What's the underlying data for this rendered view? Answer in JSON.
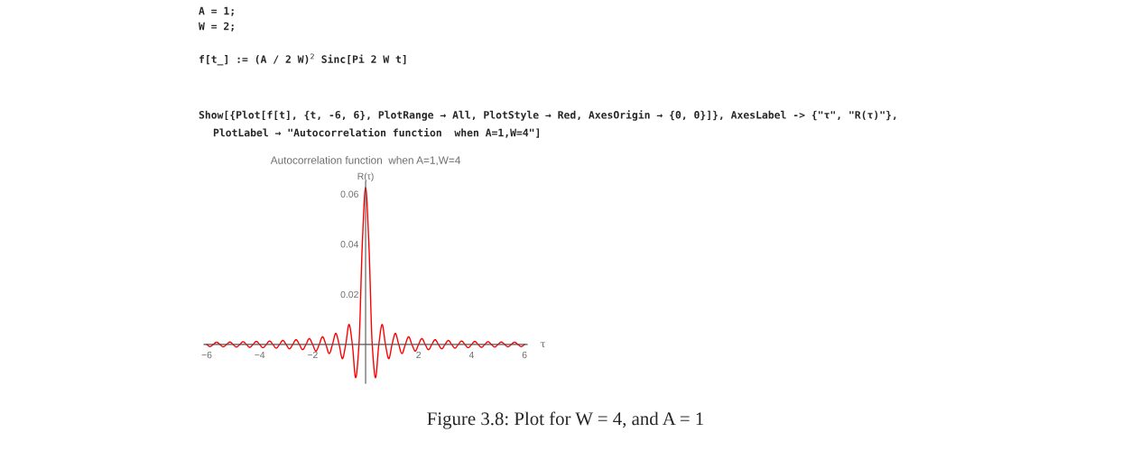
{
  "chart_data": {
    "type": "line",
    "title": "Autocorrelation function  when A=1,W=4",
    "xlabel": "τ",
    "ylabel": "R(τ)",
    "annotations": [
      "A = 1;",
      "W = 2;",
      "f[t_] := (A / 2 W)$^{2}$ Sinc[Pi 2 W t]",
      "Show[{Plot[f[t], {t, -6, 6}, PlotRange → All, PlotStyle → Red, AxesOrigin → {0, 0}]}, AxesLabel -> {\"τ\", \"R(τ)\"},",
      "PlotLabel → \"Autocorrelation function  when A=1,W=4\"]",
      "Figure 3.8: Plot for W = 4, and A = 1"
    ],
    "series": [
      {
        "color": "#ff0000",
        "x": [
          -6,
          -5.875,
          -5.75,
          -5.625,
          -5.5,
          -5.375,
          -5.25,
          -5.125,
          -5,
          -4.875,
          -4.75,
          -4.625,
          -4.5,
          -4.375,
          -4.25,
          -4.125,
          -4,
          -3.875,
          -3.75,
          -3.625,
          -3.5,
          -3.375,
          -3.25,
          -3.125,
          -3,
          -2.875,
          -2.75,
          -2.625,
          -2.5,
          -2.375,
          -2.25,
          -2.125,
          -2,
          -1.875,
          -1.75,
          -1.625,
          -1.5,
          -1.375,
          -1.25,
          -1.125,
          -1,
          -0.875,
          -0.75,
          -0.625,
          -0.5,
          -0.375,
          -0.25,
          -0.125,
          0,
          0.125,
          0.25,
          0.375,
          0.5,
          0.625,
          0.75,
          0.875,
          1,
          1.125,
          1.25,
          1.375,
          1.5,
          1.625,
          1.75,
          1.875,
          2,
          2.125,
          2.25,
          2.375,
          2.5,
          2.625,
          2.75,
          2.875,
          3,
          3.125,
          3.25,
          3.375,
          3.5,
          3.625,
          3.75,
          3.875,
          4,
          4.125,
          4.25,
          4.375,
          4.5,
          4.625,
          4.75,
          4.875,
          5,
          5.125,
          5.25,
          5.375,
          5.5,
          5.625,
          5.75,
          5.875,
          6
        ],
        "values": [
          0,
          -0.00085,
          0,
          0.00088,
          0,
          -0.00093,
          0,
          0.00097,
          0,
          -0.00102,
          0,
          0.00108,
          0,
          -0.00114,
          0,
          0.00121,
          0,
          -0.00128,
          0,
          0.00137,
          0,
          -0.00147,
          0,
          0.00159,
          0,
          -0.00173,
          0,
          0.00189,
          0,
          -0.00209,
          0,
          0.00234,
          0,
          -0.00265,
          0,
          0.00306,
          0,
          -0.00362,
          0,
          0.00442,
          0,
          -0.00568,
          0,
          0.00796,
          0,
          -0.01326,
          0,
          0.0398,
          0.0625,
          0.0398,
          0,
          -0.01326,
          0,
          0.00796,
          0,
          -0.00568,
          0,
          0.00442,
          0,
          -0.00362,
          0,
          0.00306,
          0,
          -0.00265,
          0,
          0.00234,
          0,
          -0.00209,
          0,
          0.00189,
          0,
          -0.00173,
          0,
          0.00159,
          0,
          -0.00147,
          0,
          0.00137,
          0,
          -0.00128,
          0,
          0.00121,
          0,
          -0.00114,
          0,
          0.00108,
          0,
          -0.00102,
          0,
          0.00097,
          0,
          -0.00093,
          0,
          0.00088,
          0,
          -0.00085,
          0
        ]
      }
    ],
    "xlim": [
      -6.1,
      6.1
    ],
    "ylim": [
      -0.0155,
      0.065
    ],
    "xticks": [
      {
        "value": -6,
        "label": "−6"
      },
      {
        "value": -4,
        "label": "−4"
      },
      {
        "value": -2,
        "label": "−2"
      },
      2,
      4,
      6
    ],
    "yticks": [
      0.02,
      0.04,
      0.06
    ],
    "grid": false,
    "legend": false
  }
}
